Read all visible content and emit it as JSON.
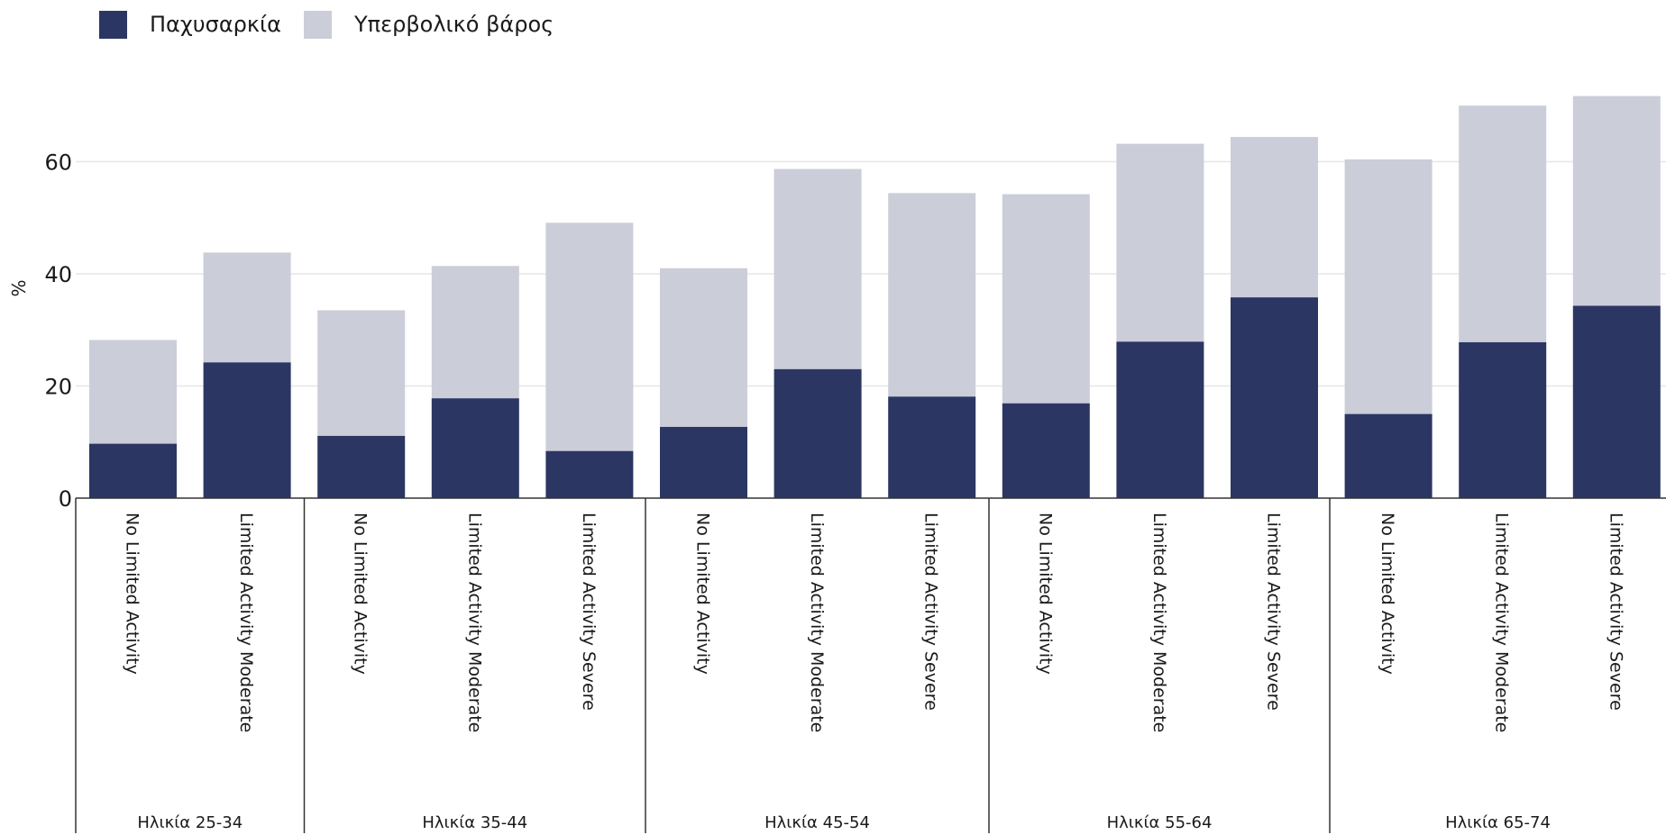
{
  "chart_data": {
    "type": "bar",
    "stacked": true,
    "ylabel": "%",
    "ylim": [
      0,
      75
    ],
    "yticks": [
      0,
      20,
      40,
      60
    ],
    "grid": true,
    "legend_position": "top-left",
    "colors": {
      "obesity": "#2b3663",
      "overweight": "#cbcdd9"
    },
    "legend": [
      "Παχυσαρκία",
      "Υπερβολικό βάρος"
    ],
    "groups": [
      {
        "label": "Ηλικία 25-34",
        "categories": [
          "No Limited Activity",
          "Limited Activity Moderate"
        ]
      },
      {
        "label": "Ηλικία 35-44",
        "categories": [
          "No Limited Activity",
          "Limited Activity Moderate",
          "Limited Activity Severe"
        ]
      },
      {
        "label": "Ηλικία 45-54",
        "categories": [
          "No Limited Activity",
          "Limited Activity Moderate",
          "Limited Activity Severe"
        ]
      },
      {
        "label": "Ηλικία 55-64",
        "categories": [
          "No Limited Activity",
          "Limited Activity Moderate",
          "Limited Activity Severe"
        ]
      },
      {
        "label": "Ηλικία 65-74",
        "categories": [
          "No Limited Activity",
          "Limited Activity Moderate",
          "Limited Activity Severe"
        ]
      }
    ],
    "series": [
      {
        "name": "Παχυσαρκία",
        "values": [
          9.7,
          24.2,
          11.1,
          17.8,
          8.4,
          12.7,
          23.0,
          18.1,
          16.9,
          27.9,
          35.8,
          15.0,
          27.8,
          34.3
        ]
      },
      {
        "name": "Υπερβολικό βάρος",
        "values": [
          18.5,
          19.6,
          22.4,
          23.6,
          40.7,
          28.3,
          35.7,
          36.3,
          37.3,
          35.3,
          28.6,
          45.4,
          42.2,
          37.4
        ]
      }
    ]
  }
}
